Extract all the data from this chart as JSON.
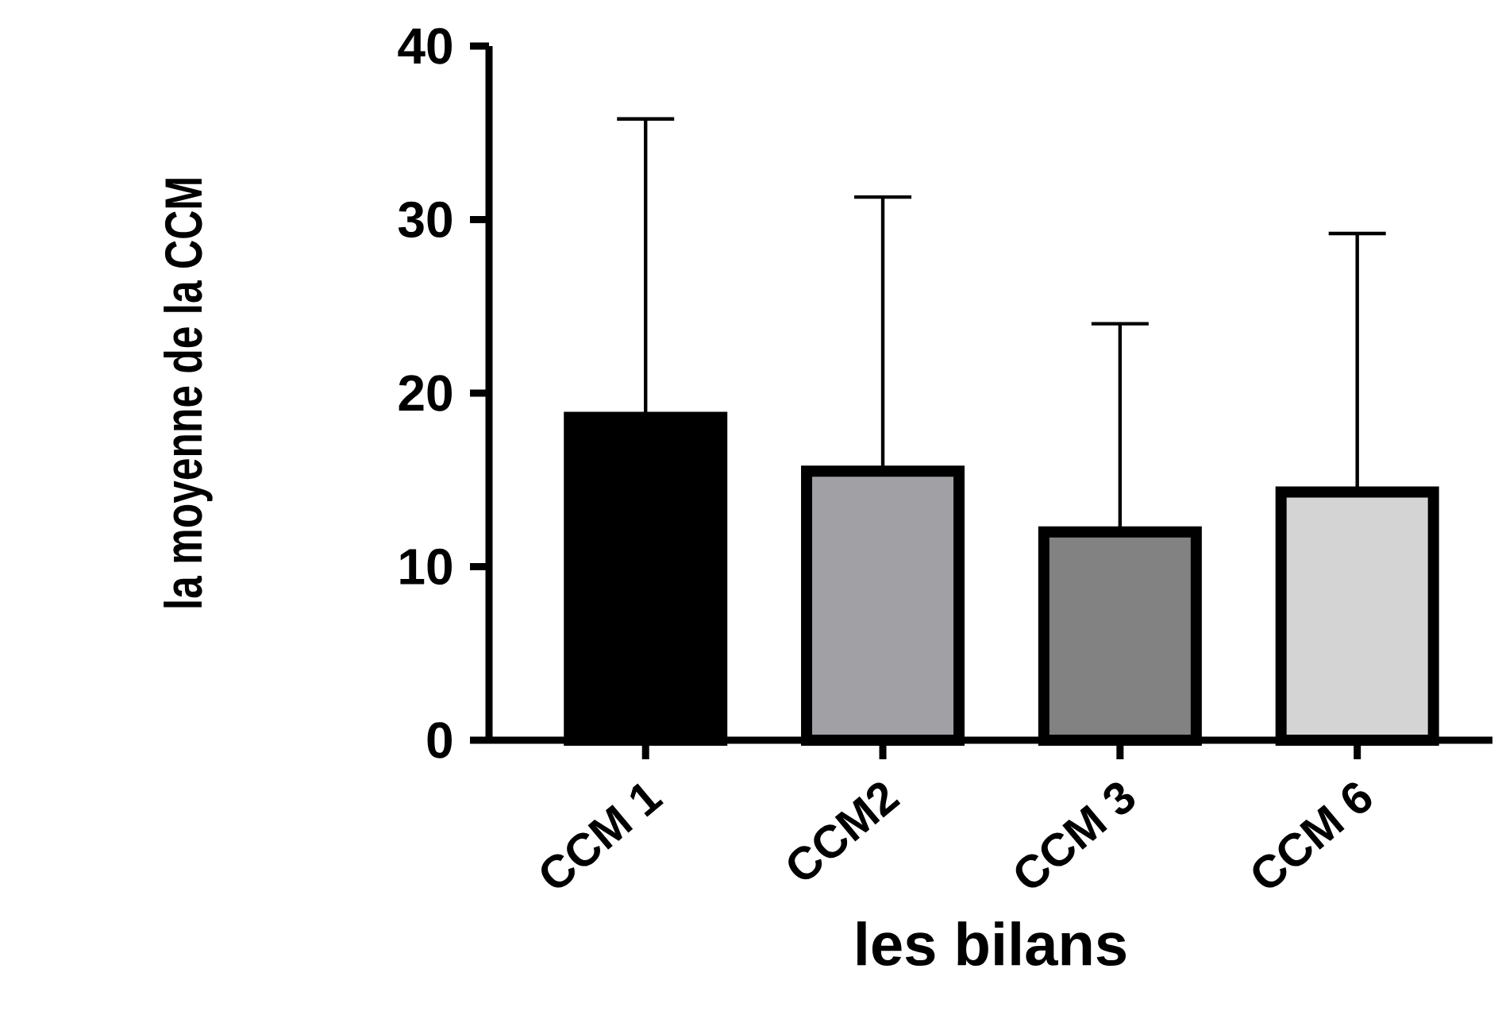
{
  "chart_data": {
    "type": "bar",
    "xlabel": "les bilans",
    "ylabel": "la moyenne de la CCM",
    "categories": [
      "CCM 1",
      "CCM2",
      "CCM 3",
      "CCM 6"
    ],
    "values": [
      18.6,
      15.5,
      12.0,
      14.3
    ],
    "errors": [
      [
        18.6,
        35.8
      ],
      [
        15.5,
        31.3
      ],
      [
        12.0,
        24.0
      ],
      [
        14.3,
        29.2
      ]
    ],
    "colors": [
      "#000000",
      "#a1a0a5",
      "#828282",
      "#d4d4d4"
    ],
    "ylim": [
      0,
      40
    ],
    "yticks": [
      0,
      10,
      20,
      30,
      40
    ],
    "grid": false
  }
}
